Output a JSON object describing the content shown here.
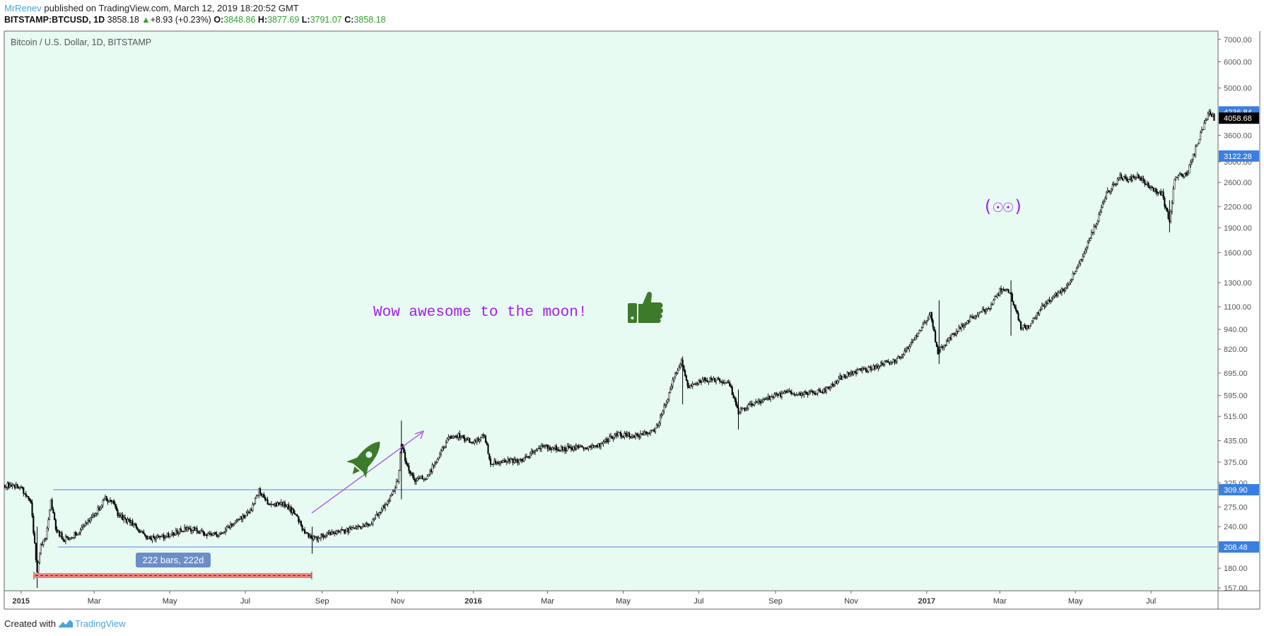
{
  "header": {
    "author": "MrRenev",
    "published_text": "published on TradingView.com, March 12, 2019 18:20:52 GMT",
    "symbol": "BITSTAMP:BTCUSD, 1D",
    "last": "3858.18",
    "change": "+8.93 (+0.23%)",
    "open_label": "O:",
    "open": "3848.86",
    "high_label": "H:",
    "high": "3877.69",
    "low_label": "L:",
    "low": "3791.07",
    "close_label": "C:",
    "close": "3858.18"
  },
  "footer": {
    "created_with": "Created with",
    "brand": "TradingView"
  },
  "colors": {
    "plot_bg": "#e8fbf3",
    "candle": "#000000",
    "hline": "#5a7de6",
    "price_tag": "#3a7fe0",
    "text_purple": "#a020f0",
    "emoji_green": "#3d7a2a",
    "range_red": "#f08080"
  },
  "chart_data": {
    "type": "candlestick",
    "title": "Bitcoin / U.S. Dollar, 1D, BITSTAMP",
    "scale": "log",
    "ylim": [
      157,
      7200
    ],
    "y_ticks": [
      "7000.00",
      "6000.00",
      "5000.00",
      "4236.84",
      "4058.68",
      "3600.00",
      "3122.28",
      "3000.00",
      "2600.00",
      "2200.00",
      "1900.00",
      "1600.00",
      "1300.00",
      "1100.00",
      "940.00",
      "820.00",
      "695.00",
      "595.00",
      "515.00",
      "435.00",
      "375.00",
      "325.00",
      "309.90",
      "275.00",
      "240.00",
      "208.48",
      "180.00",
      "157.00"
    ],
    "y_tick_values": [
      7000,
      6000,
      5000,
      3600,
      3000,
      2600,
      2200,
      1900,
      1600,
      1300,
      1100,
      940,
      820,
      695,
      595,
      515,
      435,
      375,
      325,
      275,
      240,
      180,
      157
    ],
    "x_ticks": [
      {
        "label": "2015",
        "x": "2015-01-01",
        "bold": true
      },
      {
        "label": "Mar",
        "x": "2015-03-01"
      },
      {
        "label": "May",
        "x": "2015-05-01"
      },
      {
        "label": "Jul",
        "x": "2015-07-01"
      },
      {
        "label": "Sep",
        "x": "2015-09-01"
      },
      {
        "label": "Nov",
        "x": "2015-11-01"
      },
      {
        "label": "2016",
        "x": "2016-01-01",
        "bold": true
      },
      {
        "label": "Mar",
        "x": "2016-03-01"
      },
      {
        "label": "May",
        "x": "2016-05-01"
      },
      {
        "label": "Jul",
        "x": "2016-07-01"
      },
      {
        "label": "Sep",
        "x": "2016-09-01"
      },
      {
        "label": "Nov",
        "x": "2016-11-01"
      },
      {
        "label": "2017",
        "x": "2017-01-01",
        "bold": true
      },
      {
        "label": "Mar",
        "x": "2017-03-01"
      },
      {
        "label": "May",
        "x": "2017-05-01"
      },
      {
        "label": "Jul",
        "x": "2017-07-01"
      }
    ],
    "x_range": [
      "2014-12-19",
      "2017-08-23"
    ],
    "price_path": [
      [
        "2014-12-19",
        320
      ],
      [
        "2014-12-31",
        318
      ],
      [
        "2015-01-05",
        300
      ],
      [
        "2015-01-09",
        280
      ],
      [
        "2015-01-14",
        175
      ],
      [
        "2015-01-17",
        210
      ],
      [
        "2015-01-21",
        225
      ],
      [
        "2015-01-25",
        290
      ],
      [
        "2015-01-29",
        235
      ],
      [
        "2015-02-05",
        220
      ],
      [
        "2015-02-12",
        225
      ],
      [
        "2015-02-20",
        240
      ],
      [
        "2015-03-01",
        258
      ],
      [
        "2015-03-10",
        292
      ],
      [
        "2015-03-16",
        285
      ],
      [
        "2015-03-20",
        260
      ],
      [
        "2015-04-01",
        245
      ],
      [
        "2015-04-14",
        220
      ],
      [
        "2015-04-28",
        225
      ],
      [
        "2015-05-15",
        238
      ],
      [
        "2015-05-31",
        228
      ],
      [
        "2015-06-10",
        228
      ],
      [
        "2015-06-22",
        245
      ],
      [
        "2015-07-06",
        270
      ],
      [
        "2015-07-12",
        310
      ],
      [
        "2015-07-20",
        280
      ],
      [
        "2015-08-01",
        282
      ],
      [
        "2015-08-10",
        262
      ],
      [
        "2015-08-18",
        230
      ],
      [
        "2015-08-24",
        220
      ],
      [
        "2015-09-10",
        230
      ],
      [
        "2015-09-25",
        235
      ],
      [
        "2015-10-10",
        245
      ],
      [
        "2015-10-25",
        290
      ],
      [
        "2015-11-01",
        330
      ],
      [
        "2015-11-04",
        430
      ],
      [
        "2015-11-08",
        370
      ],
      [
        "2015-11-15",
        330
      ],
      [
        "2015-11-25",
        340
      ],
      [
        "2015-12-01",
        375
      ],
      [
        "2015-12-12",
        440
      ],
      [
        "2015-12-20",
        450
      ],
      [
        "2016-01-01",
        430
      ],
      [
        "2016-01-10",
        450
      ],
      [
        "2016-01-15",
        375
      ],
      [
        "2016-01-28",
        380
      ],
      [
        "2016-02-10",
        380
      ],
      [
        "2016-02-25",
        420
      ],
      [
        "2016-03-10",
        412
      ],
      [
        "2016-03-25",
        415
      ],
      [
        "2016-04-10",
        420
      ],
      [
        "2016-04-25",
        455
      ],
      [
        "2016-05-10",
        450
      ],
      [
        "2016-05-27",
        470
      ],
      [
        "2016-06-05",
        570
      ],
      [
        "2016-06-12",
        690
      ],
      [
        "2016-06-17",
        760
      ],
      [
        "2016-06-22",
        630
      ],
      [
        "2016-07-05",
        665
      ],
      [
        "2016-07-25",
        655
      ],
      [
        "2016-08-02",
        530
      ],
      [
        "2016-08-20",
        575
      ],
      [
        "2016-09-10",
        608
      ],
      [
        "2016-09-25",
        603
      ],
      [
        "2016-10-10",
        615
      ],
      [
        "2016-10-25",
        680
      ],
      [
        "2016-11-05",
        700
      ],
      [
        "2016-11-25",
        735
      ],
      [
        "2016-12-10",
        770
      ],
      [
        "2016-12-20",
        860
      ],
      [
        "2017-01-04",
        1050
      ],
      [
        "2017-01-10",
        800
      ],
      [
        "2017-01-20",
        890
      ],
      [
        "2017-02-05",
        1010
      ],
      [
        "2017-02-20",
        1090
      ],
      [
        "2017-03-03",
        1260
      ],
      [
        "2017-03-10",
        1190
      ],
      [
        "2017-03-18",
        950
      ],
      [
        "2017-03-25",
        960
      ],
      [
        "2017-04-05",
        1110
      ],
      [
        "2017-04-25",
        1280
      ],
      [
        "2017-05-08",
        1600
      ],
      [
        "2017-05-20",
        2050
      ],
      [
        "2017-05-26",
        2400
      ],
      [
        "2017-06-06",
        2700
      ],
      [
        "2017-06-12",
        2650
      ],
      [
        "2017-06-20",
        2700
      ],
      [
        "2017-07-01",
        2500
      ],
      [
        "2017-07-10",
        2400
      ],
      [
        "2017-07-16",
        1950
      ],
      [
        "2017-07-20",
        2700
      ],
      [
        "2017-07-30",
        2750
      ],
      [
        "2017-08-05",
        3200
      ],
      [
        "2017-08-12",
        3800
      ],
      [
        "2017-08-17",
        4300
      ],
      [
        "2017-08-21",
        4058
      ]
    ],
    "horizontal_levels": [
      309.9,
      208.48
    ],
    "price_tags": [
      {
        "label": "4236.84",
        "style": "blue"
      },
      {
        "label": "4058.68",
        "style": "black"
      },
      {
        "label": "3122.28",
        "style": "blue"
      },
      {
        "label": "309.90",
        "style": "blue"
      },
      {
        "label": "208.48",
        "style": "blue"
      }
    ],
    "annotations": {
      "moon_text": "Wow awesome to the moon!",
      "eyes_text": "(☉☉)",
      "range_label": "222 bars, 222d",
      "thumbs_icon": "thumbs-up",
      "rocket_icon": "rocket"
    }
  }
}
